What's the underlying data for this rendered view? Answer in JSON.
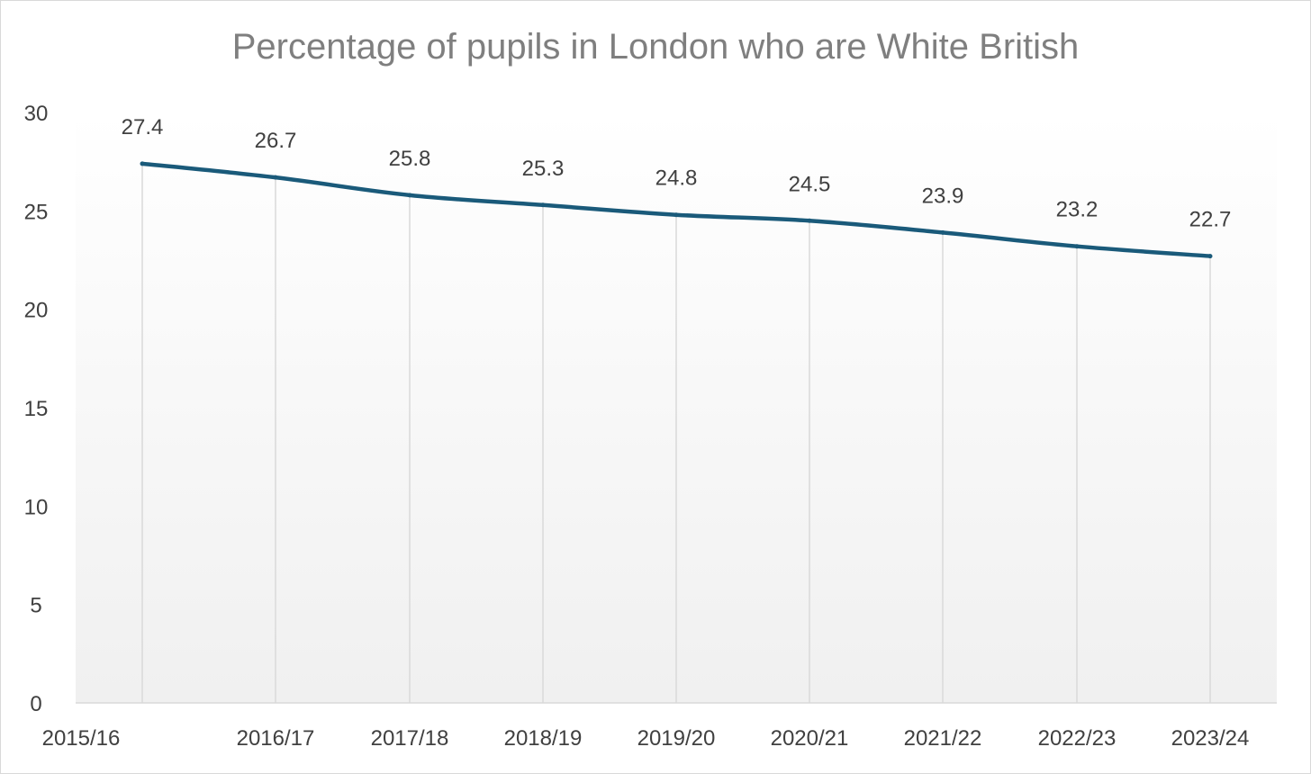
{
  "chart_data": {
    "type": "line",
    "title": "Percentage of pupils in London who are White British",
    "xlabel": "",
    "ylabel": "",
    "categories": [
      "2015/16",
      "2016/17",
      "2017/18",
      "2018/19",
      "2019/20",
      "2020/21",
      "2021/22",
      "2022/23",
      "2023/24"
    ],
    "series": [
      {
        "name": "White British",
        "values": [
          27.4,
          26.7,
          25.8,
          25.3,
          24.8,
          24.5,
          23.9,
          23.2,
          22.7
        ]
      }
    ],
    "data_labels": [
      "27.4",
      "26.7",
      "25.8",
      "25.3",
      "24.8",
      "24.5",
      "23.9",
      "23.2",
      "22.7"
    ],
    "yticks": [
      0,
      5,
      10,
      15,
      20,
      25,
      30
    ],
    "ytick_labels": [
      "0",
      "5",
      "10",
      "15",
      "20",
      "25",
      "30"
    ],
    "ylim": [
      0,
      30
    ],
    "grid": "vertical drop lines",
    "legend": "none",
    "colors": {
      "line": "#1a5a7a",
      "text": "#404040",
      "title": "#7f7f7f",
      "axis": "#d9d9d9"
    }
  }
}
